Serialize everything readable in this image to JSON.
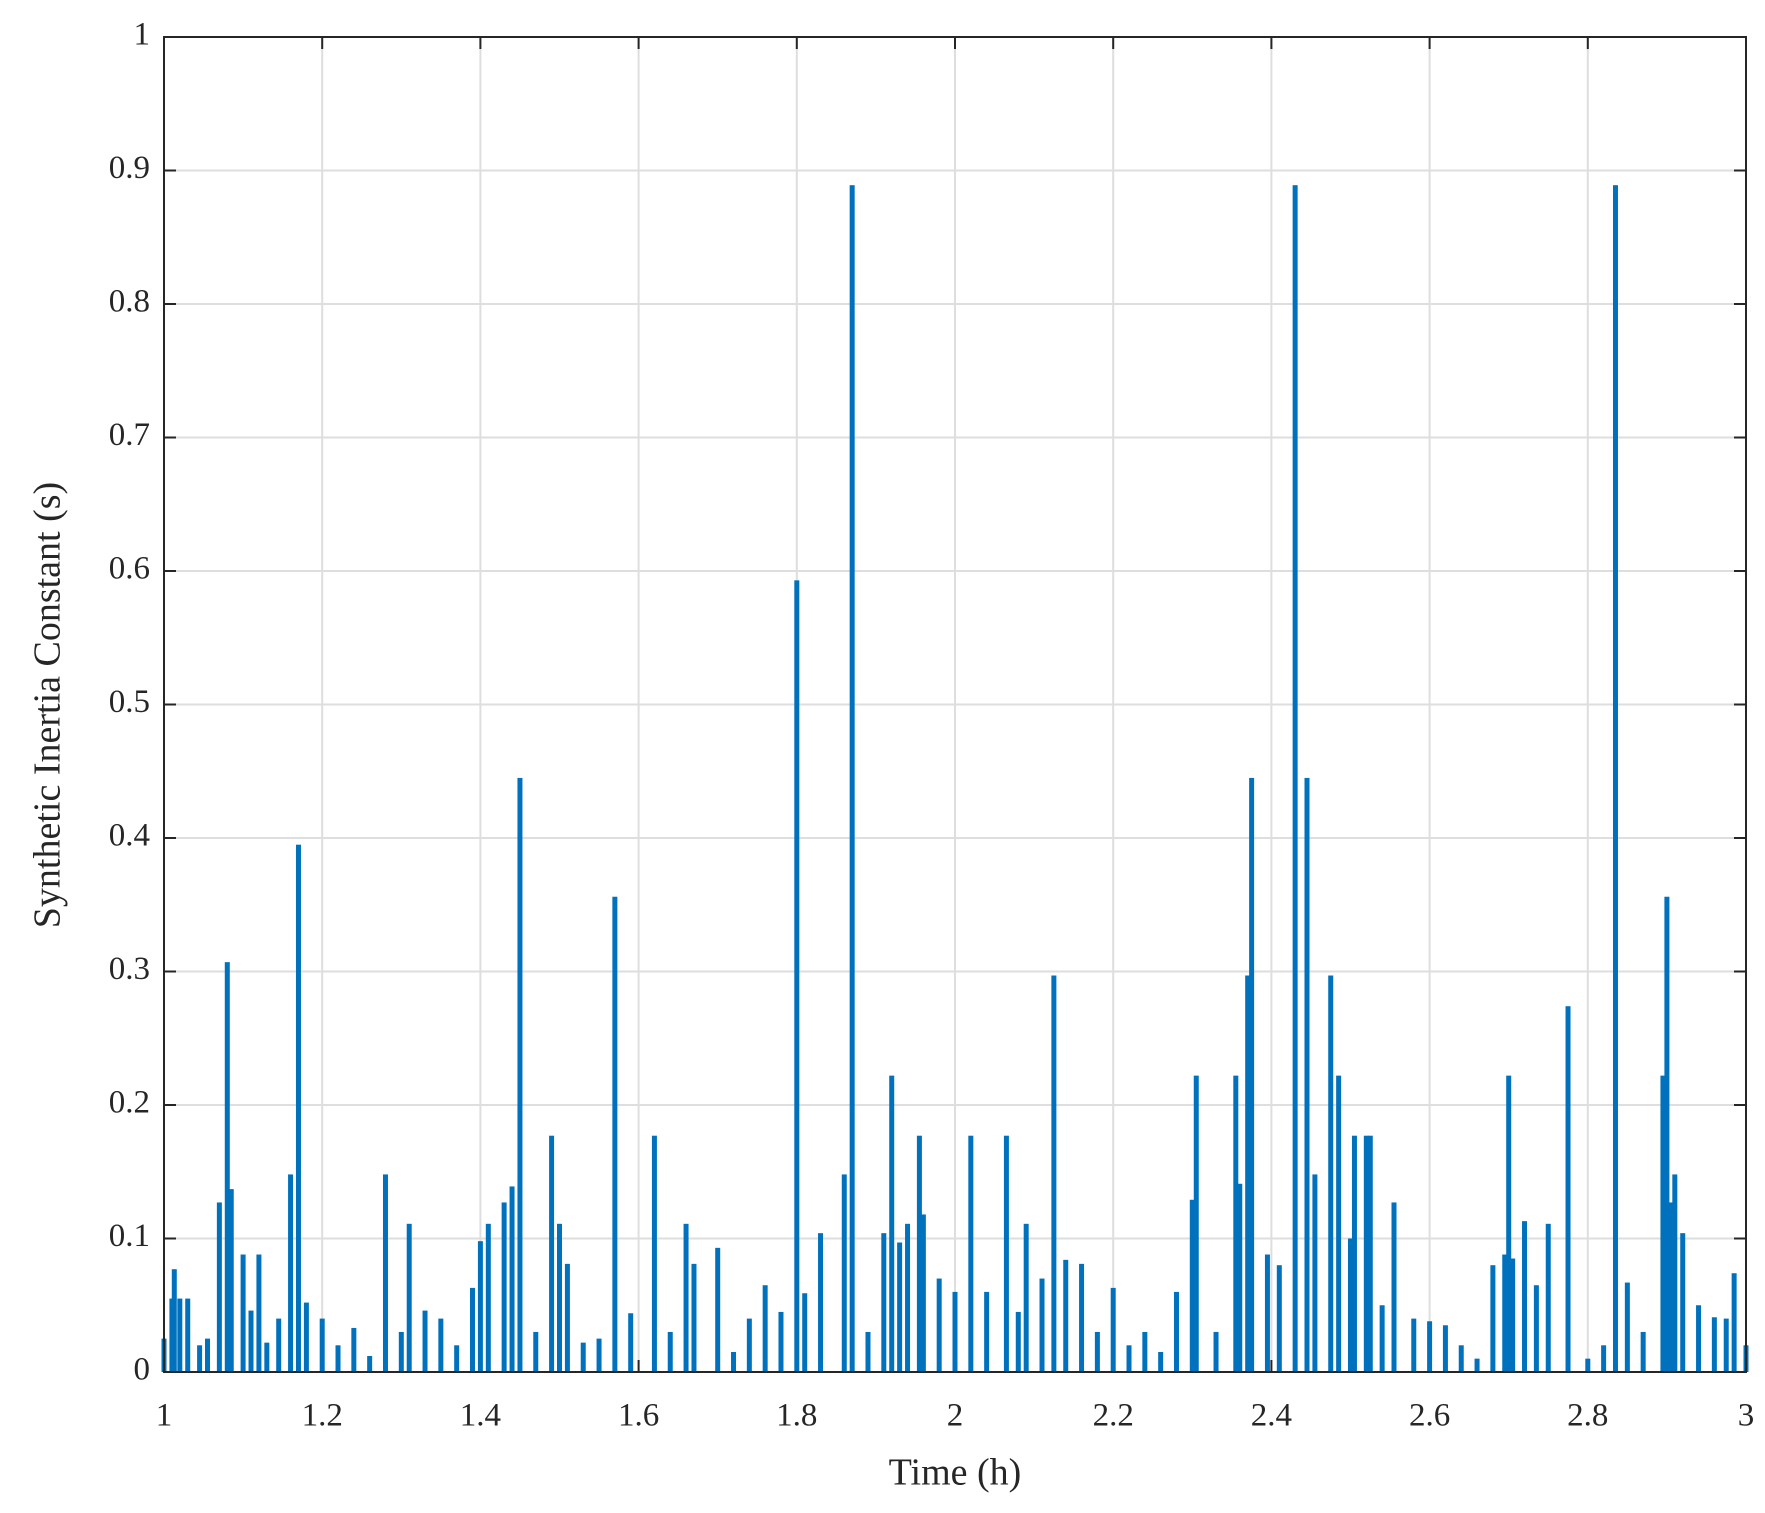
{
  "chart_data": {
    "type": "bar",
    "x_label": "Time (h)",
    "y_label": "Synthetic Inertia Constant (s)",
    "color": "#0072bd",
    "grid": true,
    "xlim": [
      1,
      3
    ],
    "xticks": [
      1,
      1.2,
      1.4,
      1.6,
      1.8,
      2,
      2.2,
      2.4,
      2.6,
      2.8,
      3
    ],
    "ylim": [
      0,
      1
    ],
    "yticks": [
      0,
      0.1,
      0.2,
      0.3,
      0.4,
      0.5,
      0.6,
      0.7,
      0.8,
      0.9,
      1
    ],
    "x": [
      1.0,
      1.01,
      1.013,
      1.02,
      1.03,
      1.045,
      1.055,
      1.07,
      1.08,
      1.085,
      1.1,
      1.11,
      1.12,
      1.13,
      1.145,
      1.16,
      1.17,
      1.18,
      1.2,
      1.22,
      1.24,
      1.26,
      1.28,
      1.3,
      1.31,
      1.33,
      1.35,
      1.37,
      1.39,
      1.4,
      1.41,
      1.43,
      1.44,
      1.45,
      1.47,
      1.49,
      1.5,
      1.51,
      1.53,
      1.55,
      1.57,
      1.59,
      1.62,
      1.64,
      1.66,
      1.67,
      1.7,
      1.72,
      1.74,
      1.76,
      1.78,
      1.8,
      1.81,
      1.83,
      1.86,
      1.87,
      1.89,
      1.91,
      1.92,
      1.93,
      1.94,
      1.955,
      1.96,
      1.98,
      2.0,
      2.02,
      2.04,
      2.065,
      2.08,
      2.09,
      2.11,
      2.125,
      2.14,
      2.16,
      2.18,
      2.2,
      2.22,
      2.24,
      2.26,
      2.28,
      2.3,
      2.305,
      2.33,
      2.355,
      2.36,
      2.37,
      2.375,
      2.395,
      2.41,
      2.43,
      2.445,
      2.455,
      2.475,
      2.485,
      2.5,
      2.505,
      2.52,
      2.525,
      2.54,
      2.555,
      2.58,
      2.6,
      2.62,
      2.64,
      2.66,
      2.68,
      2.695,
      2.7,
      2.705,
      2.72,
      2.735,
      2.75,
      2.775,
      2.8,
      2.82,
      2.835,
      2.85,
      2.87,
      2.895,
      2.9,
      2.905,
      2.91,
      2.92,
      2.94,
      2.96,
      2.975,
      2.985,
      3.0
    ],
    "values": [
      0.025,
      0.055,
      0.077,
      0.055,
      0.055,
      0.02,
      0.025,
      0.127,
      0.307,
      0.137,
      0.088,
      0.046,
      0.088,
      0.022,
      0.04,
      0.148,
      0.395,
      0.052,
      0.04,
      0.02,
      0.033,
      0.012,
      0.148,
      0.03,
      0.111,
      0.046,
      0.04,
      0.02,
      0.063,
      0.098,
      0.111,
      0.127,
      0.139,
      0.445,
      0.03,
      0.177,
      0.111,
      0.081,
      0.022,
      0.025,
      0.356,
      0.044,
      0.177,
      0.03,
      0.111,
      0.081,
      0.093,
      0.015,
      0.04,
      0.065,
      0.045,
      0.593,
      0.059,
      0.104,
      0.148,
      0.889,
      0.03,
      0.104,
      0.222,
      0.097,
      0.111,
      0.177,
      0.118,
      0.07,
      0.06,
      0.177,
      0.06,
      0.177,
      0.045,
      0.111,
      0.07,
      0.297,
      0.084,
      0.081,
      0.03,
      0.063,
      0.02,
      0.03,
      0.015,
      0.06,
      0.129,
      0.222,
      0.03,
      0.222,
      0.141,
      0.297,
      0.445,
      0.088,
      0.08,
      0.889,
      0.445,
      0.148,
      0.297,
      0.222,
      0.1,
      0.177,
      0.177,
      0.177,
      0.05,
      0.127,
      0.04,
      0.038,
      0.035,
      0.02,
      0.01,
      0.08,
      0.088,
      0.222,
      0.085,
      0.113,
      0.065,
      0.111,
      0.274,
      0.01,
      0.02,
      0.889,
      0.067,
      0.03,
      0.222,
      0.356,
      0.127,
      0.148,
      0.104,
      0.05,
      0.041,
      0.04,
      0.074,
      0.02
    ]
  }
}
